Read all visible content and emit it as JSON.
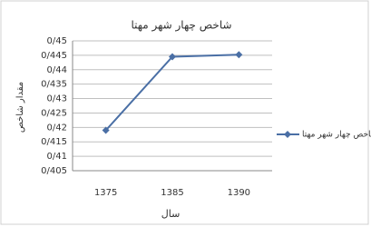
{
  "chart_data": {
    "type": "line",
    "title": "شاخص چهار شهر مهتا",
    "x_label": "سال",
    "y_label": "مقدار شاخص",
    "categories": [
      "1375",
      "1385",
      "1390"
    ],
    "series": [
      {
        "name": "شاخص چهار شهر مهتا",
        "color": "#4a6fa5",
        "values": [
          0.419,
          0.4445,
          0.4452
        ]
      }
    ],
    "ylim": [
      0.405,
      0.45
    ],
    "yticks": [
      {
        "value": 0.405,
        "label": "0/405"
      },
      {
        "value": 0.41,
        "label": "0/41"
      },
      {
        "value": 0.415,
        "label": "0/415"
      },
      {
        "value": 0.42,
        "label": "0/42"
      },
      {
        "value": 0.425,
        "label": "0/425"
      },
      {
        "value": 0.43,
        "label": "0/43"
      },
      {
        "value": 0.435,
        "label": "0/435"
      },
      {
        "value": 0.44,
        "label": "0/44"
      },
      {
        "value": 0.445,
        "label": "0/445"
      },
      {
        "value": 0.45,
        "label": "0/45"
      }
    ],
    "grid": true,
    "legend": "right"
  }
}
